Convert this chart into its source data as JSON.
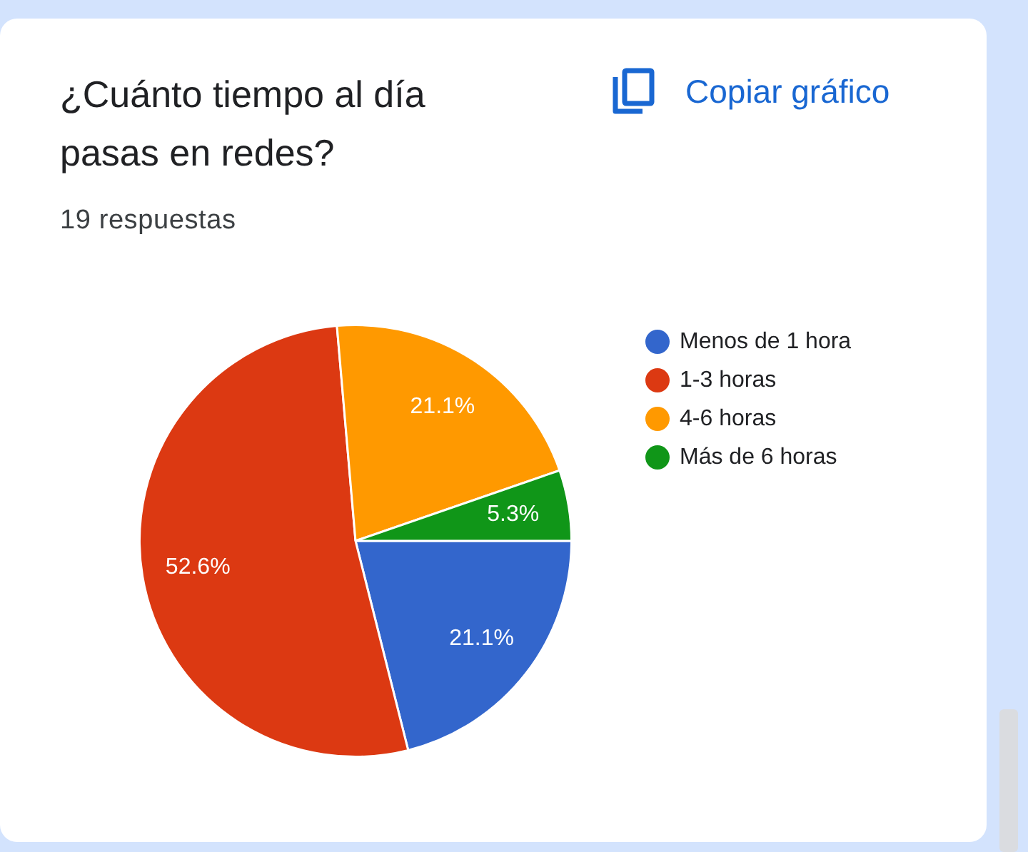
{
  "chart_data": {
    "type": "pie",
    "title": "¿Cuánto tiempo al día pasas en redes?",
    "subtitle": "19 respuestas",
    "categories": [
      "Menos de 1 hora",
      "1-3 horas",
      "4-6 horas",
      "Más de 6 horas"
    ],
    "values": [
      21.1,
      52.6,
      21.1,
      5.3
    ],
    "colors": [
      "#3366cc",
      "#dc3912",
      "#ff9900",
      "#109618"
    ],
    "value_labels": [
      "21.1%",
      "52.6%",
      "21.1%",
      "5.3%"
    ],
    "legend": "top right",
    "annotations": [
      "Copiar gráfico"
    ]
  }
}
